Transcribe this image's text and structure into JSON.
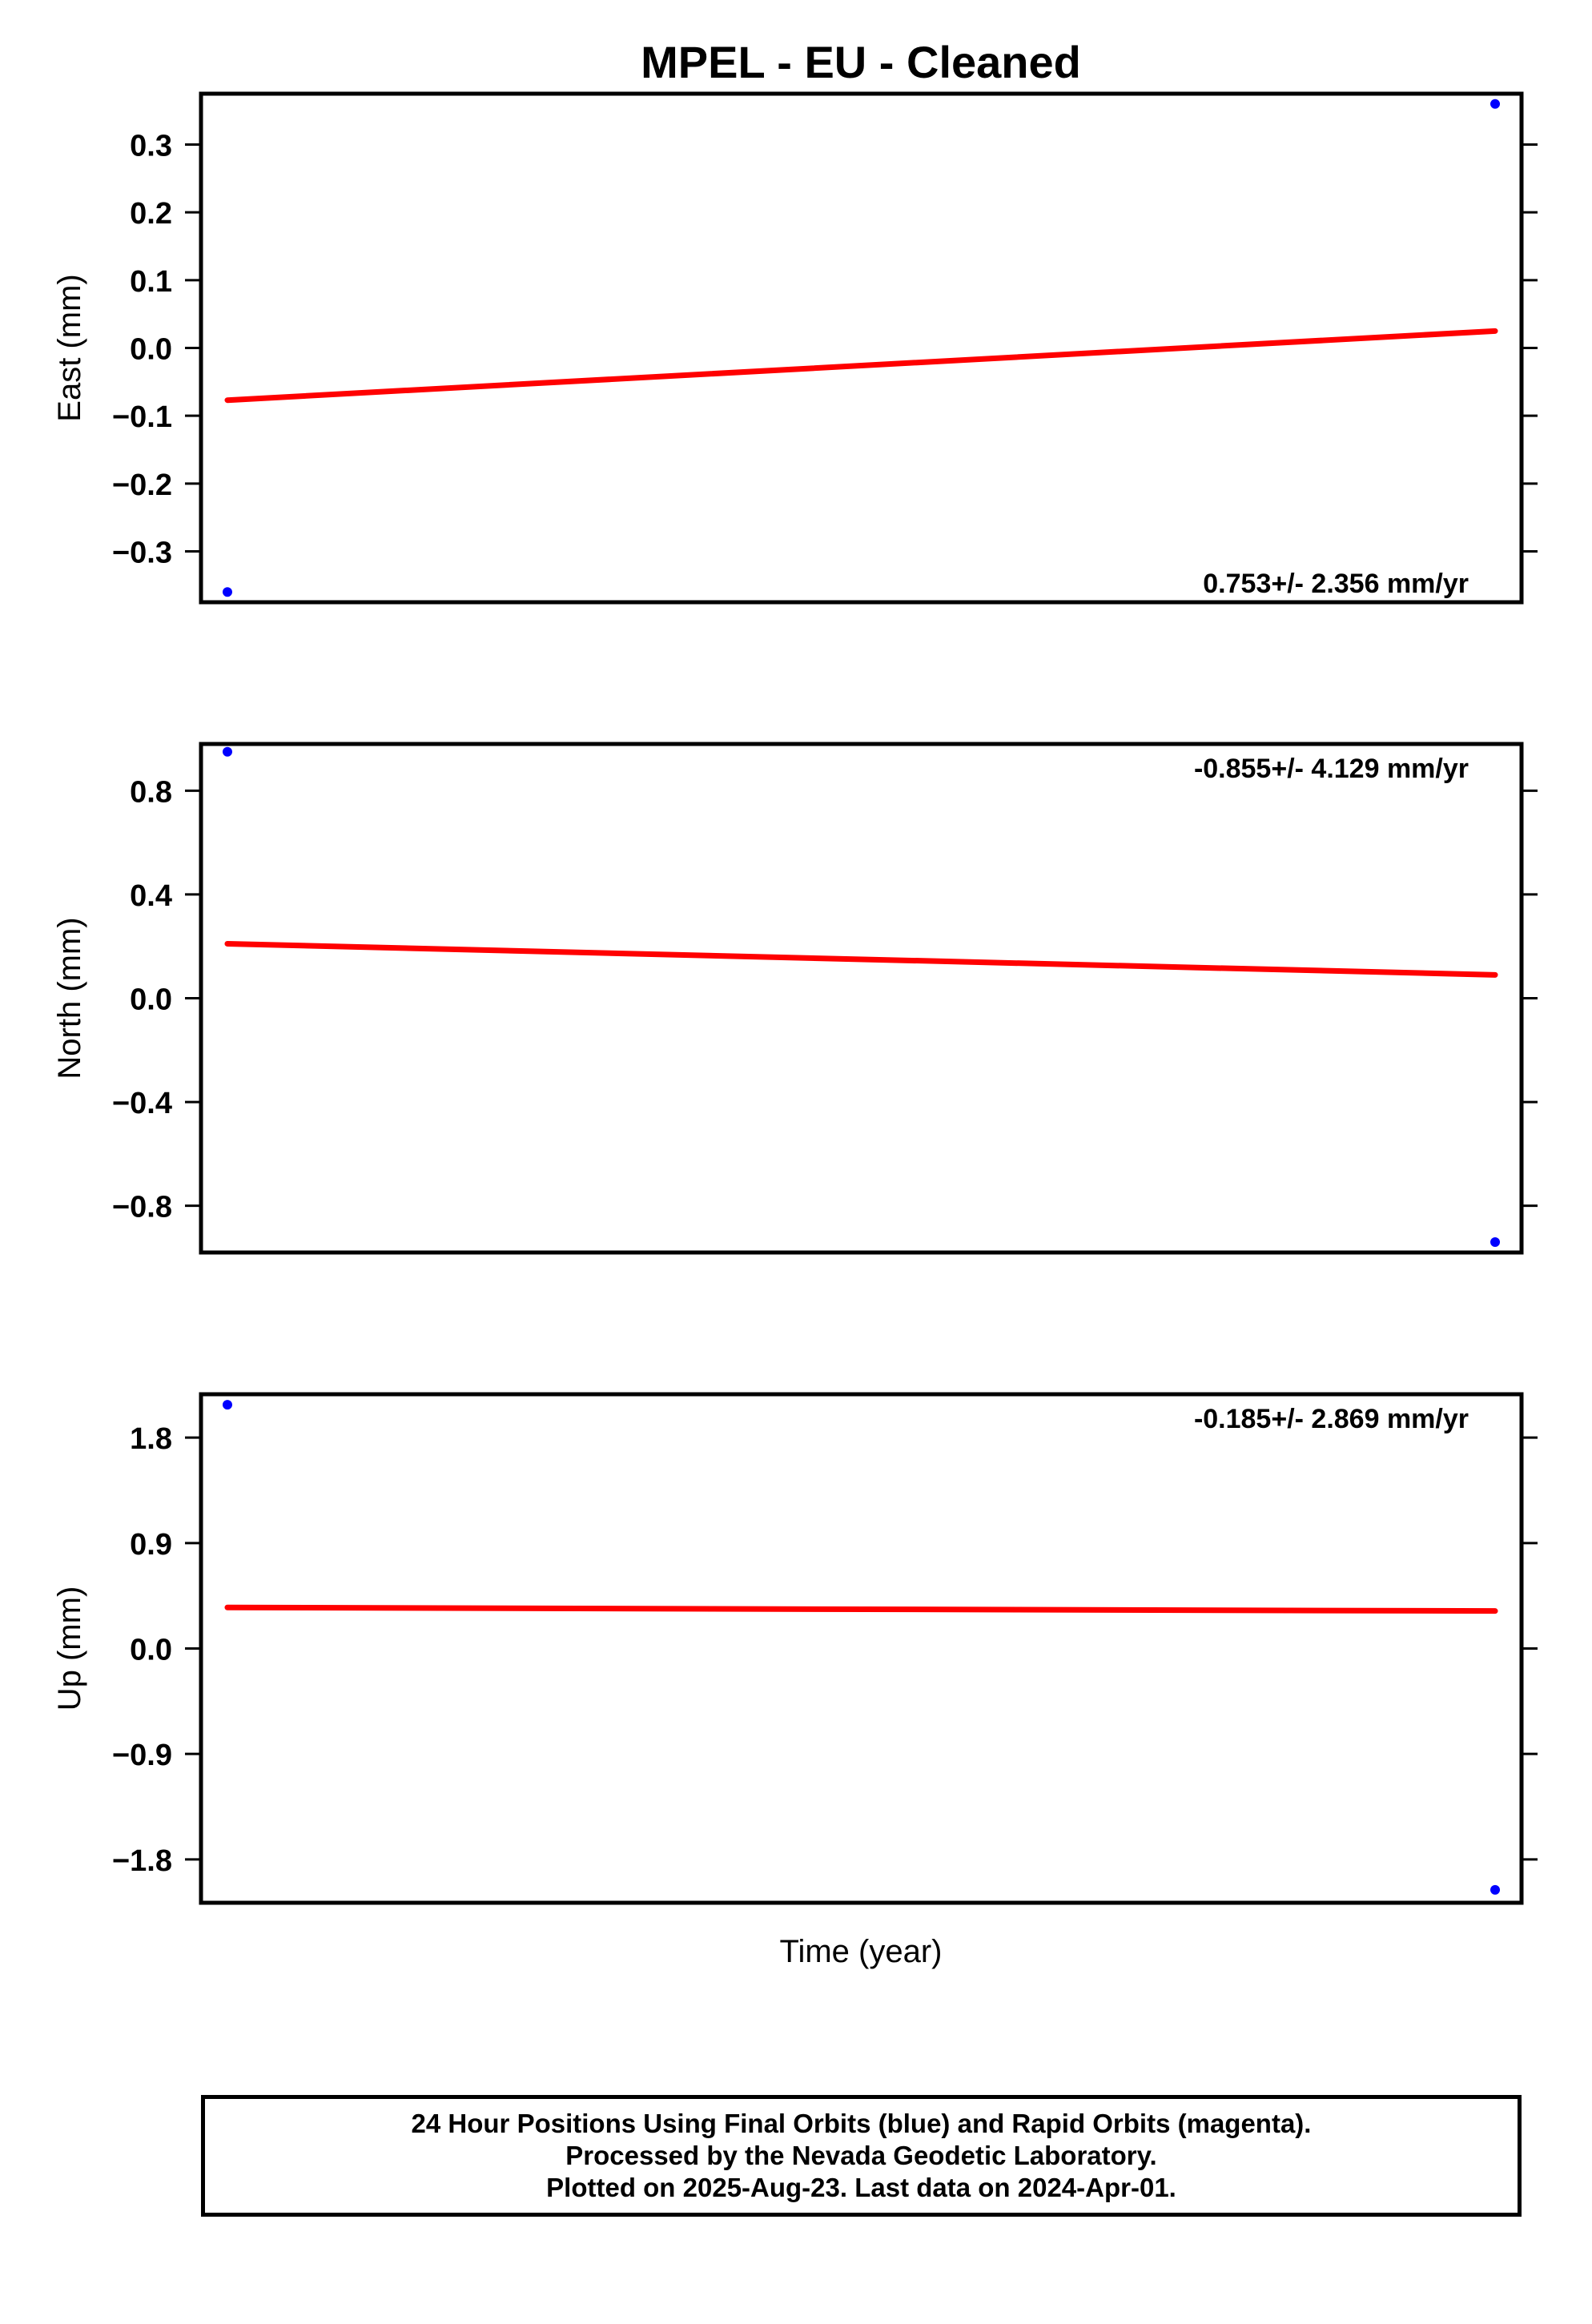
{
  "title": "MPEL  - EU - Cleaned",
  "xlabel": "Time (year)",
  "colors": {
    "points": "#0000ff",
    "fit": "#ff0000",
    "frame": "#000000"
  },
  "footer": {
    "line1": "24 Hour Positions Using Final Orbits (blue) and Rapid Orbits (magenta).",
    "line2": "Processed by the Nevada Geodetic Laboratory.",
    "line3": "Plotted on 2025-Aug-23. Last data on 2024-Apr-01."
  },
  "chart_data": [
    {
      "type": "scatter",
      "name": "east",
      "ylabel": "East (mm)",
      "ylim": [
        -0.375,
        0.375
      ],
      "yticks": [
        0.3,
        0.2,
        0.1,
        0.0,
        -0.1,
        -0.2,
        -0.3
      ],
      "ytick_labels": [
        "0.3",
        "0.2",
        "0.1",
        "0.0",
        "−0.1",
        "−0.2",
        "−0.3"
      ],
      "xlim": [
        0,
        1
      ],
      "points": [
        {
          "x": 0.02,
          "y": -0.36
        },
        {
          "x": 0.98,
          "y": 0.36
        }
      ],
      "fit": [
        {
          "x": 0.02,
          "y": -0.077
        },
        {
          "x": 0.98,
          "y": 0.025
        }
      ],
      "rate_label": "0.753+/- 2.356 mm/yr",
      "rate_position": "bottom-right"
    },
    {
      "type": "scatter",
      "name": "north",
      "ylabel": "North (mm)",
      "ylim": [
        -0.98,
        0.98
      ],
      "yticks": [
        0.8,
        0.4,
        0.0,
        -0.4,
        -0.8
      ],
      "ytick_labels": [
        "0.8",
        "0.4",
        "0.0",
        "−0.4",
        "−0.8"
      ],
      "xlim": [
        0,
        1
      ],
      "points": [
        {
          "x": 0.02,
          "y": 0.95
        },
        {
          "x": 0.98,
          "y": -0.94
        }
      ],
      "fit": [
        {
          "x": 0.02,
          "y": 0.21
        },
        {
          "x": 0.98,
          "y": 0.09
        }
      ],
      "rate_label": "-0.855+/- 4.129 mm/yr",
      "rate_position": "top-right"
    },
    {
      "type": "scatter",
      "name": "up",
      "ylabel": "Up (mm)",
      "ylim": [
        -2.17,
        2.17
      ],
      "yticks": [
        1.8,
        0.9,
        0.0,
        -0.9,
        -1.8
      ],
      "ytick_labels": [
        "1.8",
        "0.9",
        "0.0",
        "−0.9",
        "−1.8"
      ],
      "xlim": [
        0,
        1
      ],
      "points": [
        {
          "x": 0.02,
          "y": 2.08
        },
        {
          "x": 0.98,
          "y": -2.06
        }
      ],
      "fit": [
        {
          "x": 0.02,
          "y": 0.35
        },
        {
          "x": 0.98,
          "y": 0.32
        }
      ],
      "rate_label": "-0.185+/- 2.869 mm/yr",
      "rate_position": "top-right"
    }
  ]
}
